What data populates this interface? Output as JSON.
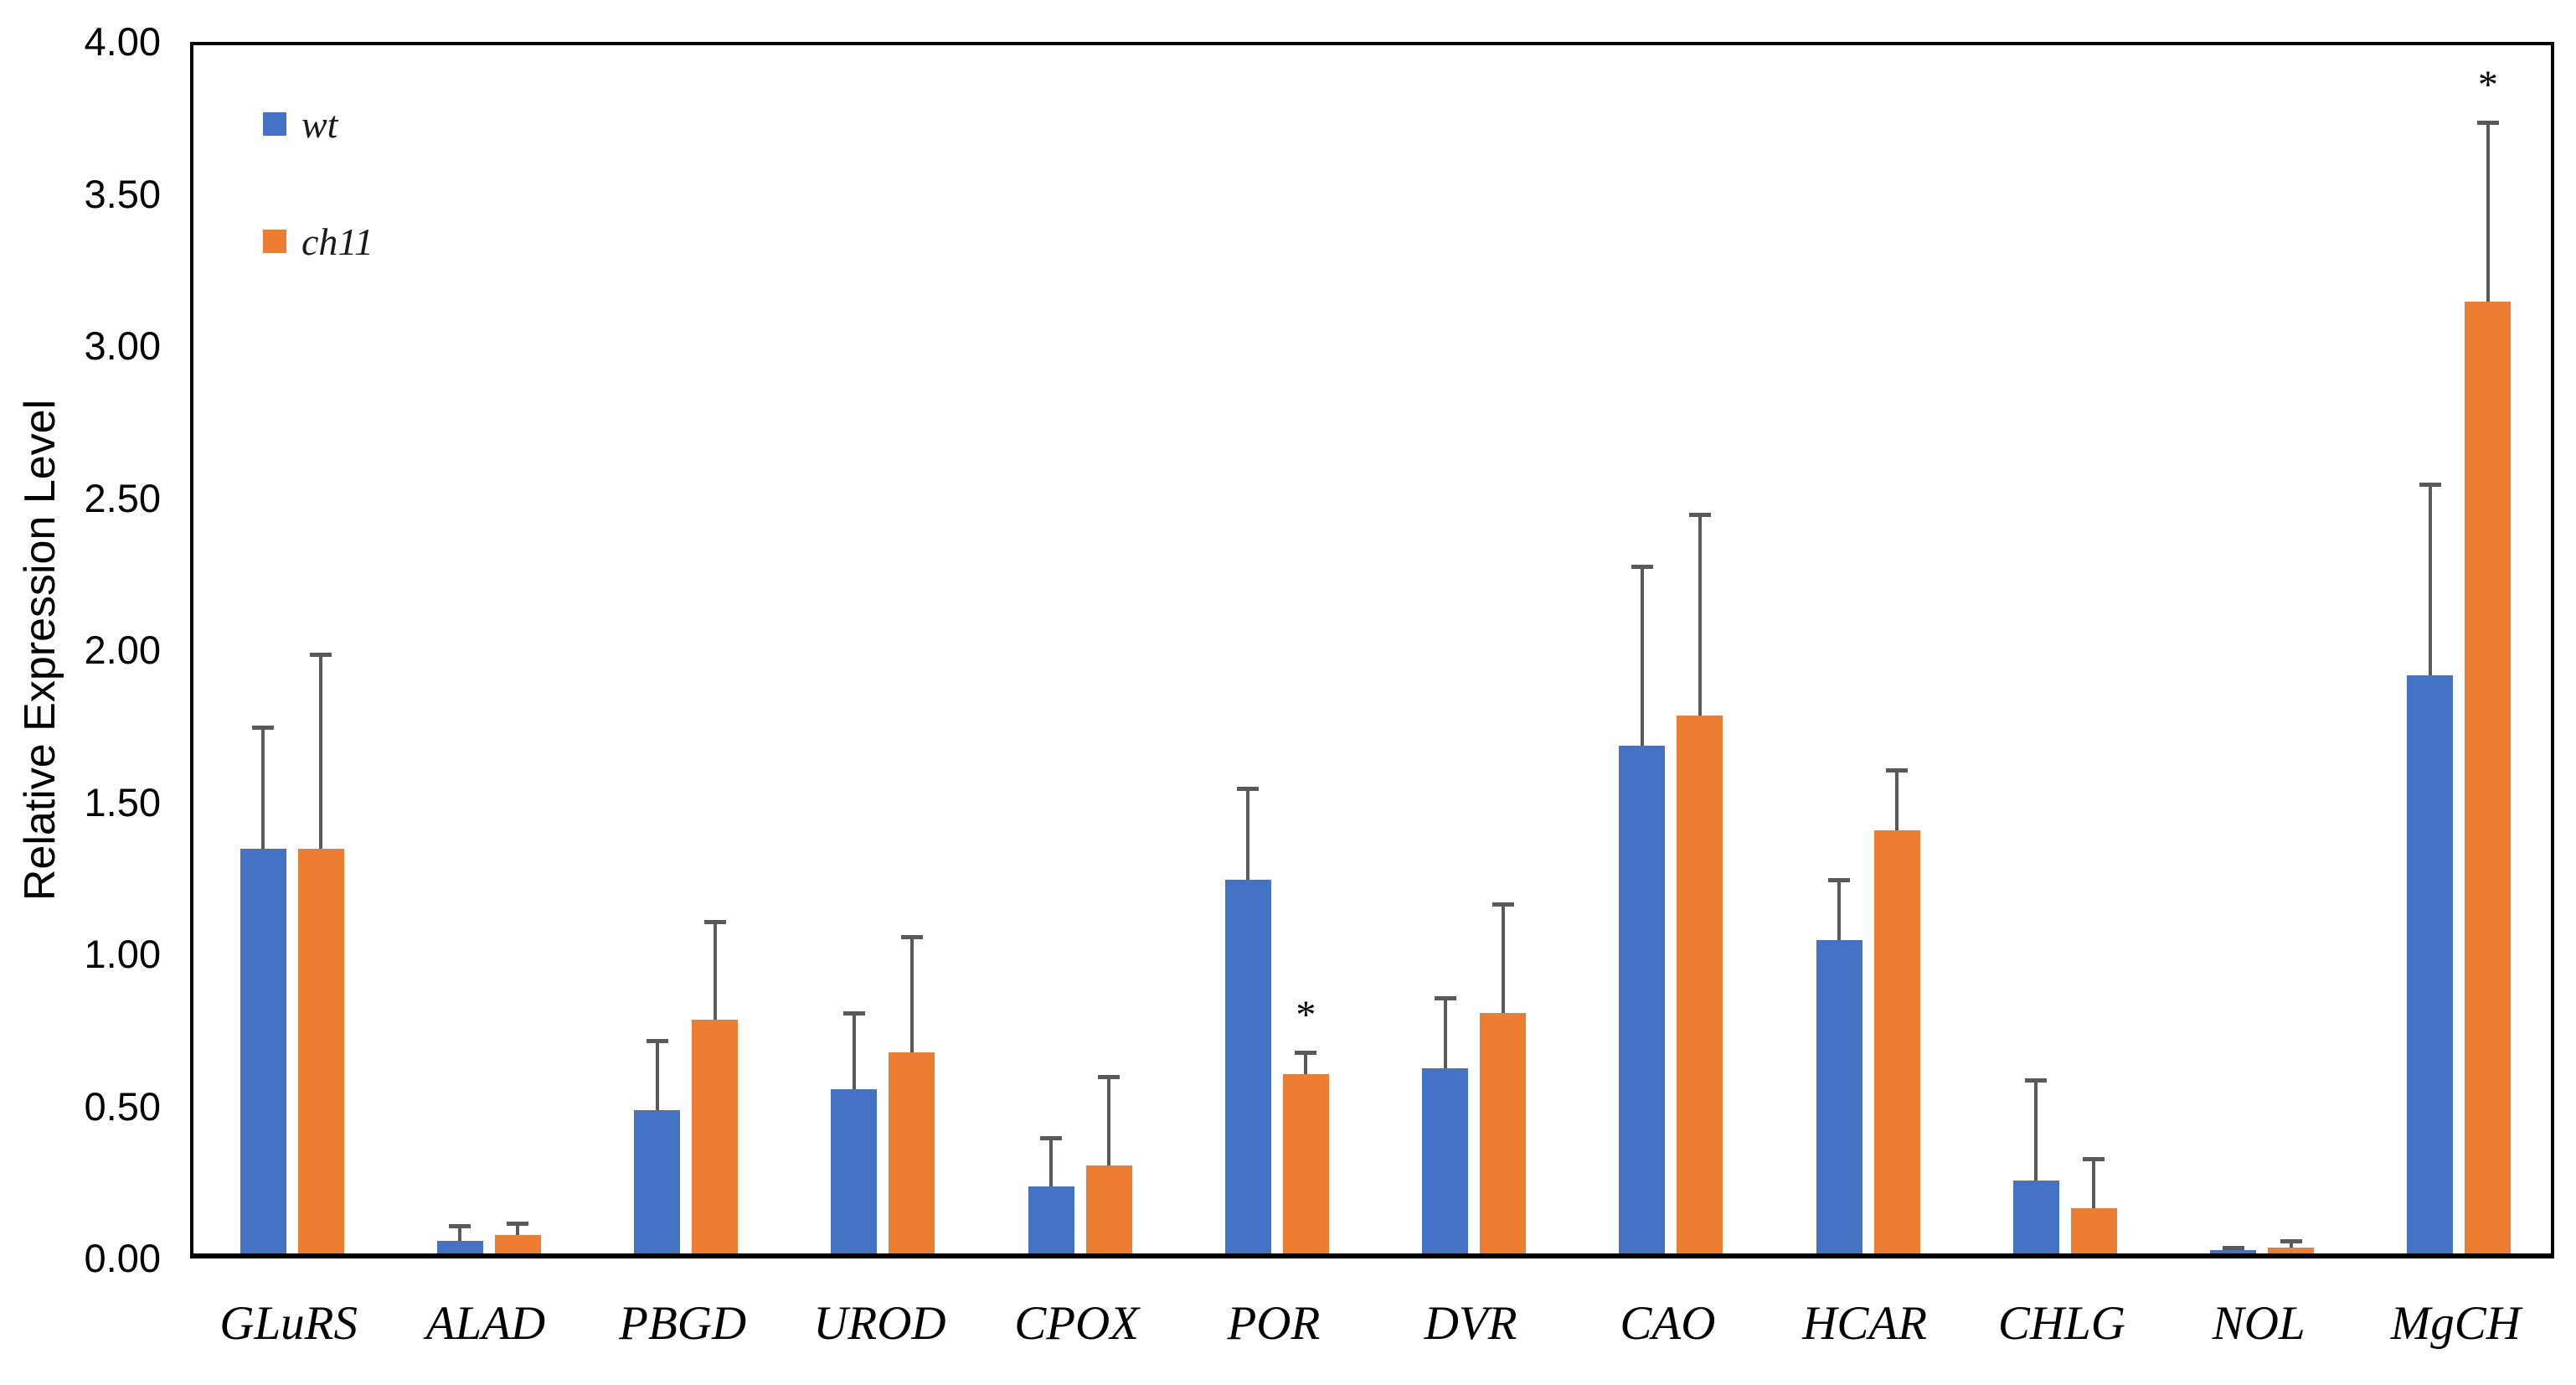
{
  "chart_data": {
    "type": "bar",
    "title": "",
    "ylabel": "Relative Expression Level",
    "xlabel": "",
    "ylim": [
      0,
      4.0
    ],
    "ytick_step": 0.5,
    "ytick_labels": [
      "4.00",
      "3.50",
      "3.00",
      "2.50",
      "2.00",
      "1.50",
      "1.00",
      "0.50",
      "0.00"
    ],
    "grid": false,
    "axis_color": "#000000",
    "error_bar_color": "#595959",
    "legend": {
      "position": "top-left-inside",
      "items": [
        "wt",
        "ch11"
      ]
    },
    "categories": [
      "GLuRS",
      "ALAD",
      "PBGD",
      "UROD",
      "CPOX",
      "POR",
      "DVR",
      "CAO",
      "HCAR",
      "CHLG",
      "NOL",
      "MgCH"
    ],
    "series": [
      {
        "name": "wt",
        "color": "#4472C4",
        "values": [
          1.33,
          0.04,
          0.47,
          0.54,
          0.22,
          1.23,
          0.61,
          1.67,
          1.03,
          0.24,
          0.01,
          1.9
        ],
        "errors_upper": [
          0.4,
          0.05,
          0.23,
          0.25,
          0.16,
          0.3,
          0.23,
          0.59,
          0.2,
          0.33,
          0.01,
          0.63
        ],
        "significance": [
          "",
          "",
          "",
          "",
          "",
          "",
          "",
          "",
          "",
          "",
          "",
          ""
        ]
      },
      {
        "name": "ch11",
        "color": "#ED7D31",
        "values": [
          1.33,
          0.06,
          0.77,
          0.66,
          0.29,
          0.59,
          0.79,
          1.77,
          1.39,
          0.15,
          0.02,
          3.13
        ],
        "errors_upper": [
          0.64,
          0.04,
          0.32,
          0.38,
          0.29,
          0.07,
          0.36,
          0.66,
          0.2,
          0.16,
          0.02,
          0.59
        ],
        "significance": [
          "",
          "",
          "",
          "",
          "",
          "*",
          "",
          "",
          "",
          "",
          "",
          "*"
        ]
      }
    ]
  }
}
